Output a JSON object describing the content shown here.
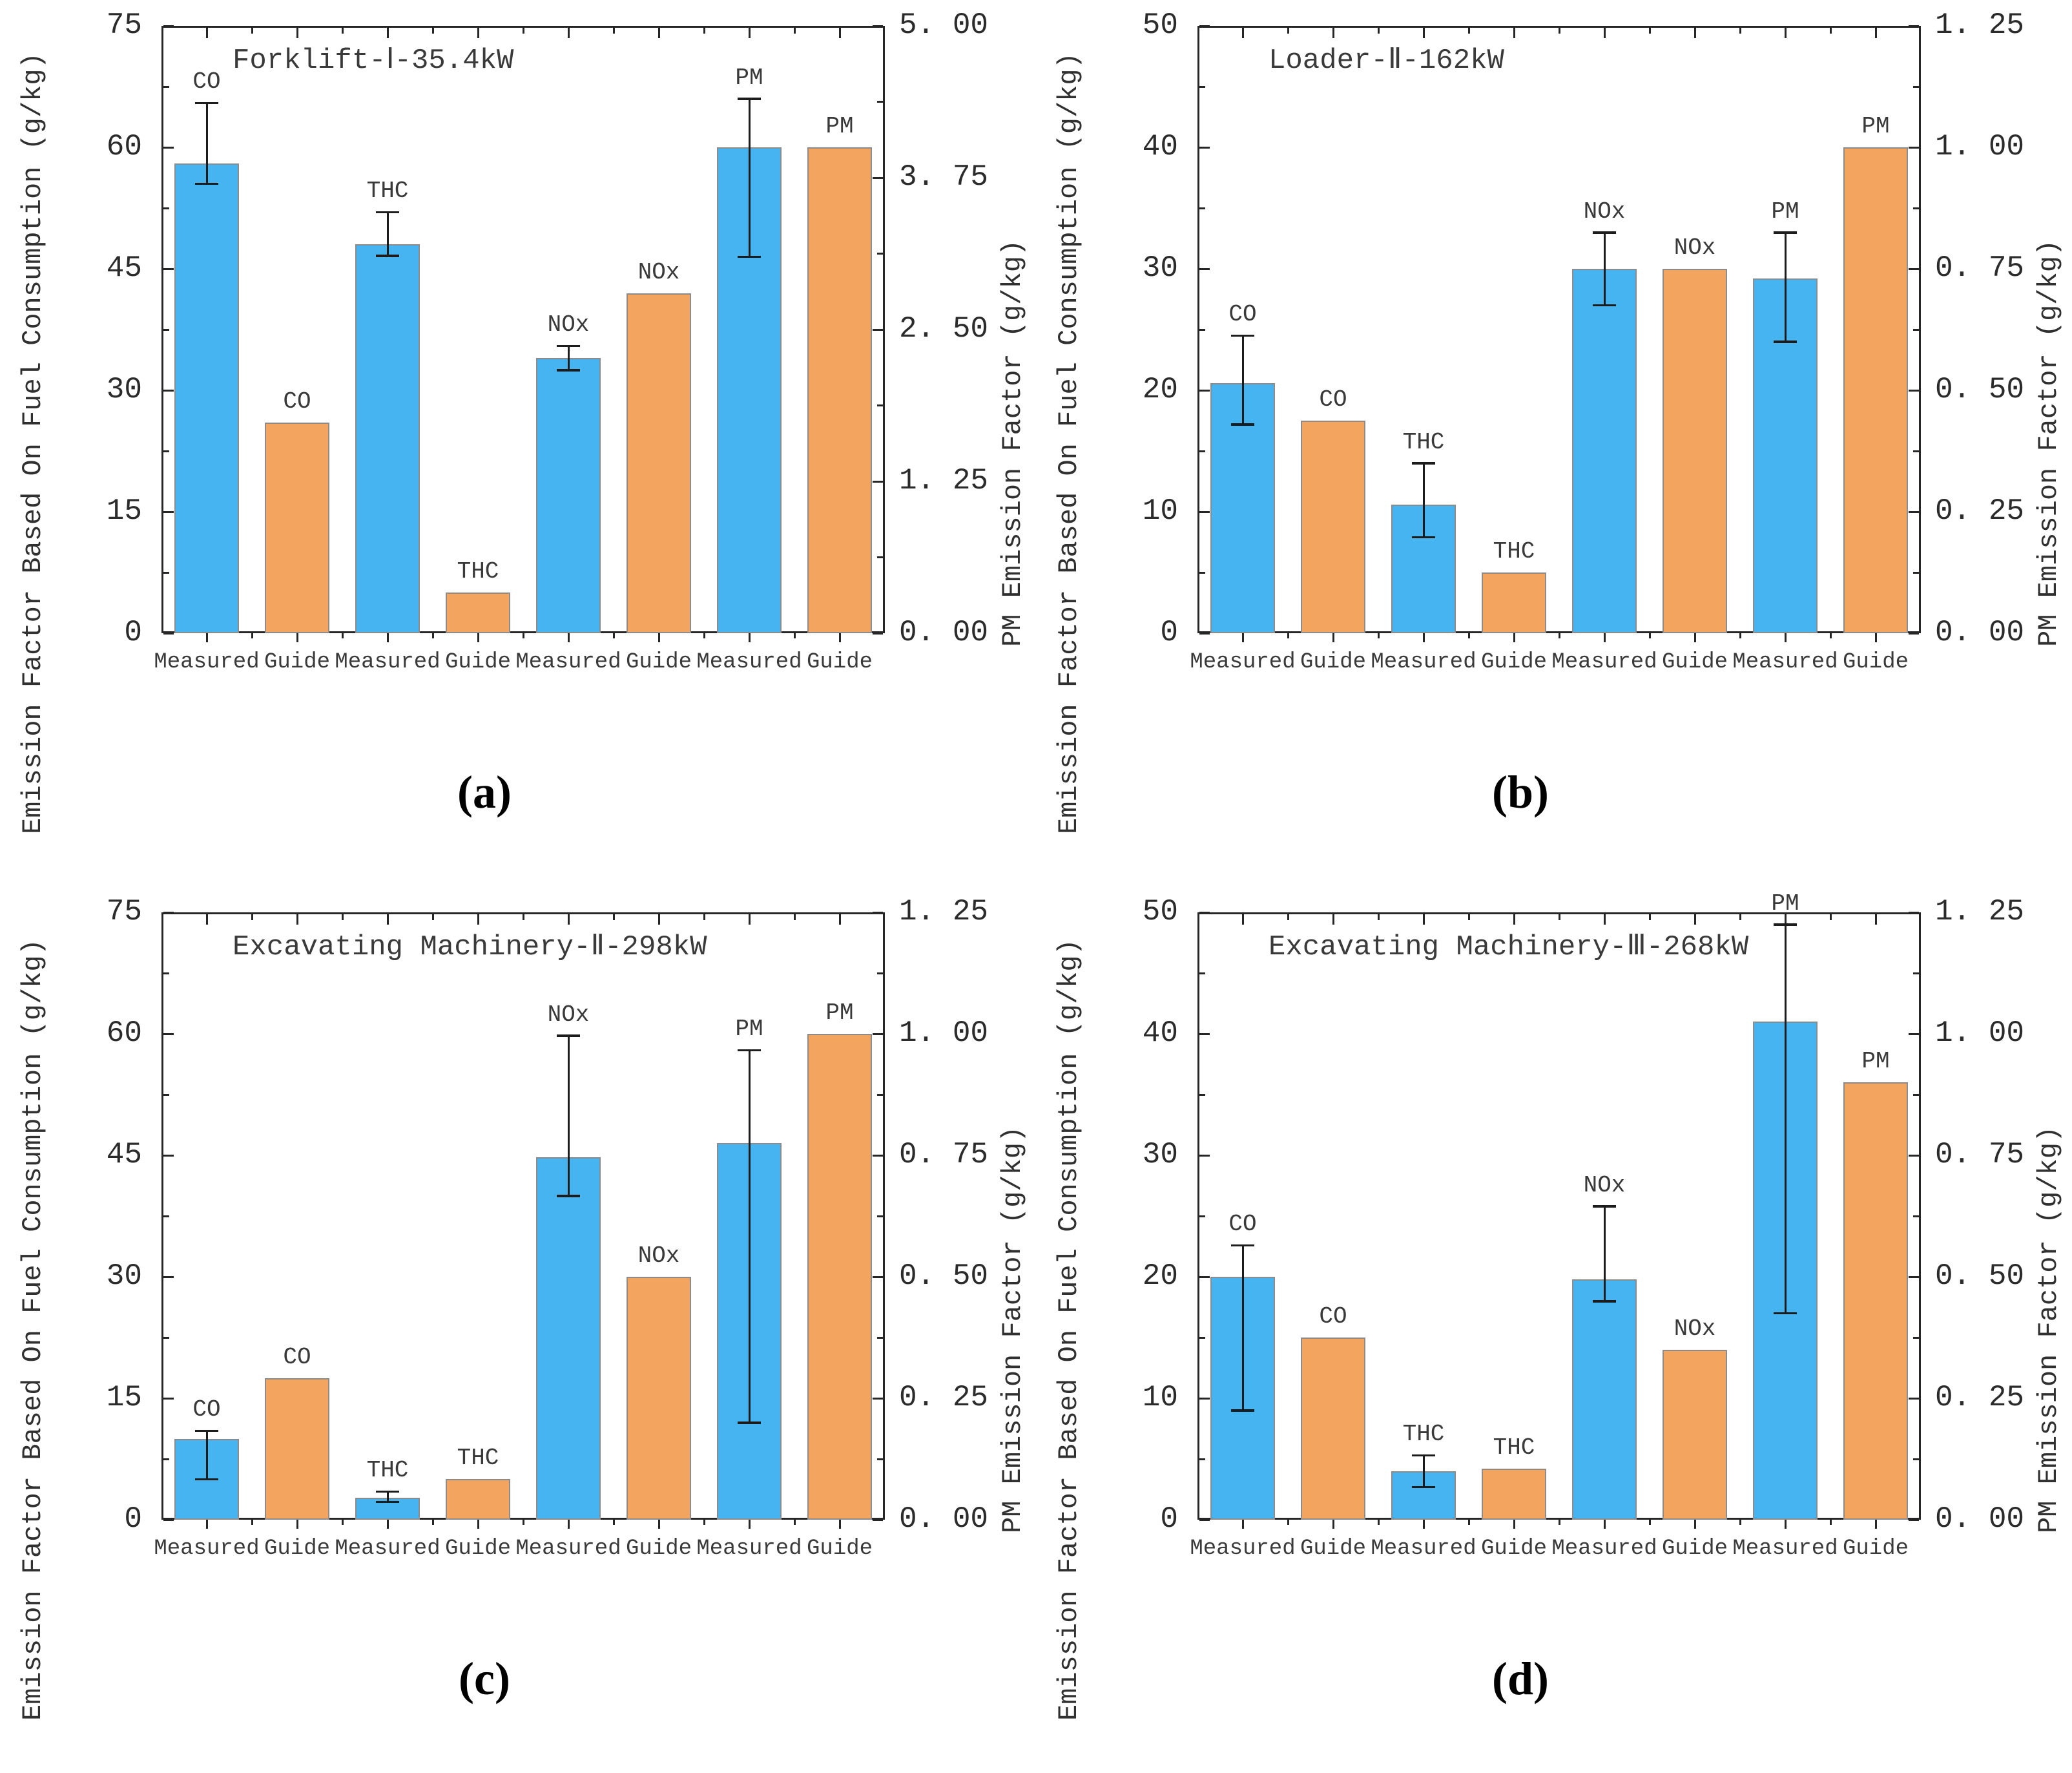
{
  "figure": {
    "captions": [
      "(a)",
      "(b)",
      "(c)",
      "(d)"
    ],
    "colors": {
      "measured_bar": "#47b4f2",
      "guide_bar": "#f3a45e",
      "bar_edge": "#8c8c8c",
      "error_bar": "#1c1c1c",
      "spine": "#262626",
      "text": "#3a3a3a"
    }
  },
  "chart_data": [
    {
      "type": "bar",
      "panel": "a",
      "title": "Forklift-Ⅰ-35.4kW",
      "ylabel_left": "Emission Factor Based On Fuel Consumption (g/kg)",
      "ylabel_right": "PM Emission Factor (g/kg)",
      "legend_position": "none",
      "grid": false,
      "left_axis": {
        "min": 0,
        "max": 75,
        "majors": [
          0,
          15,
          30,
          45,
          60,
          75
        ],
        "minors": [
          7.5,
          22.5,
          37.5,
          52.5,
          67.5
        ],
        "tick_labels": [
          "0",
          "15",
          "30",
          "45",
          "60",
          "75"
        ]
      },
      "right_axis": {
        "min": 0,
        "max": 5,
        "majors": [
          0,
          1.25,
          2.5,
          3.75,
          5
        ],
        "minors": [
          0.625,
          1.875,
          3.125,
          4.375
        ],
        "tick_labels": [
          "0. 00",
          "1. 25",
          "2. 50",
          "3. 75",
          "5. 00"
        ]
      },
      "bars": [
        {
          "label": "CO",
          "category": "Measured",
          "kind": "measured",
          "value": 58,
          "err_low": 55.5,
          "err_high": 65.5
        },
        {
          "label": "CO",
          "category": "Guide",
          "kind": "guide",
          "value": 26
        },
        {
          "label": "THC",
          "category": "Measured",
          "kind": "measured",
          "value": 48,
          "err_low": 46.6,
          "err_high": 52
        },
        {
          "label": "THC",
          "category": "Guide",
          "kind": "guide",
          "value": 5
        },
        {
          "label": "NOx",
          "category": "Measured",
          "kind": "measured",
          "value": 34,
          "err_low": 32.5,
          "err_high": 35.5
        },
        {
          "label": "NOx",
          "category": "Guide",
          "kind": "guide",
          "value": 42
        },
        {
          "label": "PM",
          "category": "Measured",
          "kind": "measured",
          "value": 60,
          "err_low": 46.5,
          "err_high": 66,
          "right_value": 4.0,
          "right_err_low": 3.1,
          "right_err_high": 4.4
        },
        {
          "label": "PM",
          "category": "Guide",
          "kind": "guide",
          "value": 60,
          "right_value": 4.0
        }
      ]
    },
    {
      "type": "bar",
      "panel": "b",
      "title": "Loader-Ⅱ-162kW",
      "ylabel_left": "Emission Factor Based On Fuel Consumption (g/kg)",
      "ylabel_right": "PM Emission Factor (g/kg)",
      "legend_position": "none",
      "grid": false,
      "left_axis": {
        "min": 0,
        "max": 50,
        "majors": [
          0,
          10,
          20,
          30,
          40,
          50
        ],
        "minors": [
          5,
          15,
          25,
          35,
          45
        ],
        "tick_labels": [
          "0",
          "10",
          "20",
          "30",
          "40",
          "50"
        ]
      },
      "right_axis": {
        "min": 0,
        "max": 1.25,
        "majors": [
          0,
          0.25,
          0.5,
          0.75,
          1.0,
          1.25
        ],
        "minors": [
          0.125,
          0.375,
          0.625,
          0.875,
          1.125
        ],
        "tick_labels": [
          "0. 00",
          "0. 25",
          "0. 50",
          "0. 75",
          "1. 00",
          "1. 25"
        ]
      },
      "bars": [
        {
          "label": "CO",
          "category": "Measured",
          "kind": "measured",
          "value": 20.6,
          "err_low": 17.2,
          "err_high": 24.5
        },
        {
          "label": "CO",
          "category": "Guide",
          "kind": "guide",
          "value": 17.5
        },
        {
          "label": "THC",
          "category": "Measured",
          "kind": "measured",
          "value": 10.6,
          "err_low": 7.9,
          "err_high": 14
        },
        {
          "label": "THC",
          "category": "Guide",
          "kind": "guide",
          "value": 5
        },
        {
          "label": "NOx",
          "category": "Measured",
          "kind": "measured",
          "value": 30,
          "err_low": 27,
          "err_high": 33
        },
        {
          "label": "NOx",
          "category": "Guide",
          "kind": "guide",
          "value": 30
        },
        {
          "label": "PM",
          "category": "Measured",
          "kind": "measured",
          "value": 29.2,
          "err_low": 24,
          "err_high": 33,
          "right_value": 0.73,
          "right_err_low": 0.6,
          "right_err_high": 0.83
        },
        {
          "label": "PM",
          "category": "Guide",
          "kind": "guide",
          "value": 40,
          "right_value": 1.0
        }
      ]
    },
    {
      "type": "bar",
      "panel": "c",
      "title": "Excavating Machinery-Ⅱ-298kW",
      "ylabel_left": "Emission Factor Based On Fuel Consumption (g/kg)",
      "ylabel_right": "PM Emission Factor (g/kg)",
      "legend_position": "none",
      "grid": false,
      "left_axis": {
        "min": 0,
        "max": 75,
        "majors": [
          0,
          15,
          30,
          45,
          60,
          75
        ],
        "minors": [
          7.5,
          22.5,
          37.5,
          52.5,
          67.5
        ],
        "tick_labels": [
          "0",
          "15",
          "30",
          "45",
          "60",
          "75"
        ]
      },
      "right_axis": {
        "min": 0,
        "max": 1.25,
        "majors": [
          0,
          0.25,
          0.5,
          0.75,
          1.0,
          1.25
        ],
        "minors": [
          0.125,
          0.375,
          0.625,
          0.875,
          1.125
        ],
        "tick_labels": [
          "0. 00",
          "0. 25",
          "0. 50",
          "0. 75",
          "1. 00",
          "1. 25"
        ]
      },
      "bars": [
        {
          "label": "CO",
          "category": "Measured",
          "kind": "measured",
          "value": 10,
          "err_low": 5,
          "err_high": 11
        },
        {
          "label": "CO",
          "category": "Guide",
          "kind": "guide",
          "value": 17.5
        },
        {
          "label": "THC",
          "category": "Measured",
          "kind": "measured",
          "value": 2.7,
          "err_low": 2.2,
          "err_high": 3.5
        },
        {
          "label": "THC",
          "category": "Guide",
          "kind": "guide",
          "value": 5
        },
        {
          "label": "NOx",
          "category": "Measured",
          "kind": "measured",
          "value": 44.8,
          "err_low": 40,
          "err_high": 59.8
        },
        {
          "label": "NOx",
          "category": "Guide",
          "kind": "guide",
          "value": 30
        },
        {
          "label": "PM",
          "category": "Measured",
          "kind": "measured",
          "value": 46.5,
          "err_low": 12,
          "err_high": 58,
          "right_value": 0.78,
          "right_err_low": 0.2,
          "right_err_high": 0.97
        },
        {
          "label": "PM",
          "category": "Guide",
          "kind": "guide",
          "value": 60,
          "right_value": 1.0
        }
      ]
    },
    {
      "type": "bar",
      "panel": "d",
      "title": "Excavating Machinery-Ⅲ-268kW",
      "ylabel_left": "Emission Factor Based On Fuel Consumption (g/kg)",
      "ylabel_right": "PM Emission Factor (g/kg)",
      "legend_position": "none",
      "grid": false,
      "left_axis": {
        "min": 0,
        "max": 50,
        "majors": [
          0,
          10,
          20,
          30,
          40,
          50
        ],
        "minors": [
          5,
          15,
          25,
          35,
          45
        ],
        "tick_labels": [
          "0",
          "10",
          "20",
          "30",
          "40",
          "50"
        ]
      },
      "right_axis": {
        "min": 0,
        "max": 1.25,
        "majors": [
          0,
          0.25,
          0.5,
          0.75,
          1.0,
          1.25
        ],
        "minors": [
          0.125,
          0.375,
          0.625,
          0.875,
          1.125
        ],
        "tick_labels": [
          "0. 00",
          "0. 25",
          "0. 50",
          "0. 75",
          "1. 00",
          "1. 25"
        ]
      },
      "bars": [
        {
          "label": "CO",
          "category": "Measured",
          "kind": "measured",
          "value": 20,
          "err_low": 9,
          "err_high": 22.6
        },
        {
          "label": "CO",
          "category": "Guide",
          "kind": "guide",
          "value": 15
        },
        {
          "label": "THC",
          "category": "Measured",
          "kind": "measured",
          "value": 4,
          "err_low": 2.7,
          "err_high": 5.3
        },
        {
          "label": "THC",
          "category": "Guide",
          "kind": "guide",
          "value": 4.2
        },
        {
          "label": "NOx",
          "category": "Measured",
          "kind": "measured",
          "value": 19.8,
          "err_low": 18,
          "err_high": 25.8
        },
        {
          "label": "NOx",
          "category": "Guide",
          "kind": "guide",
          "value": 14
        },
        {
          "label": "PM",
          "category": "Measured",
          "kind": "measured",
          "value": 41,
          "err_low": 17,
          "err_high": 49,
          "right_value": 1.03,
          "right_err_low": 0.43,
          "right_err_high": 1.23
        },
        {
          "label": "PM",
          "category": "Guide",
          "kind": "guide",
          "value": 36,
          "right_value": 0.9
        }
      ]
    }
  ]
}
